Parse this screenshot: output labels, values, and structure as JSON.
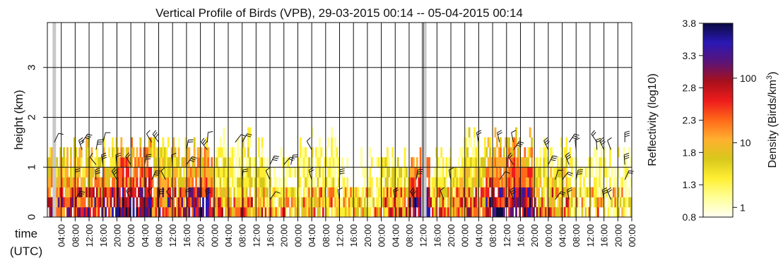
{
  "chart_data": {
    "type": "heatmap",
    "title": "Vertical Profile of Birds (VPB), 29-03-2015 00:14  --  05-04-2015 00:14",
    "xlabel": "time\n(UTC)",
    "xlabel_lines": [
      "time",
      "(UTC)"
    ],
    "ylabel": "height (km)",
    "ylim": [
      0,
      3.9
    ],
    "yticks": [
      "0",
      "1",
      "2",
      "3"
    ],
    "xlim_hours": [
      0,
      168
    ],
    "xtick_hours": [
      4,
      8,
      12,
      16,
      20,
      24,
      28,
      32,
      36,
      40,
      44,
      48,
      52,
      56,
      60,
      64,
      68,
      72,
      76,
      80,
      84,
      88,
      92,
      96,
      100,
      104,
      108,
      112,
      116,
      120,
      124,
      128,
      132,
      136,
      140,
      144,
      148,
      152,
      156,
      160,
      164,
      168
    ],
    "xtick_labels": [
      "04:00",
      "08:00",
      "12:00",
      "16:00",
      "20:00",
      "00:00",
      "04:00",
      "08:00",
      "12:00",
      "16:00",
      "20:00",
      "00:00",
      "04:00",
      "08:00",
      "12:00",
      "16:00",
      "20:00",
      "00:00",
      "04:00",
      "08:00",
      "12:00",
      "16:00",
      "20:00",
      "00:00",
      "04:00",
      "08:00",
      "12:00",
      "16:00",
      "20:00",
      "00:00",
      "04:00",
      "08:00",
      "12:00",
      "16:00",
      "20:00",
      "00:00",
      "04:00",
      "08:00",
      "12:00",
      "16:00",
      "20:00",
      "00:00"
    ],
    "missing_data_hours": [
      [
        1.5,
        2.5
      ],
      [
        107.5,
        109.0
      ]
    ],
    "grid": true,
    "colorbar": {
      "left_label": "Reflectivity (log10)",
      "right_label": "Density (Birds/km",
      "right_label_sup": "3",
      "right_label_end": ")",
      "left_ticks": [
        "0.8",
        "1.3",
        "1.8",
        "2.3",
        "2.8",
        "3.3",
        "3.8"
      ],
      "right_ticks": [
        {
          "label": "1",
          "reflectivity": 0.95
        },
        {
          "label": "10",
          "reflectivity": 1.95
        },
        {
          "label": "100",
          "reflectivity": 2.95
        }
      ],
      "range": [
        0.8,
        3.8
      ],
      "colors": [
        "#fffff2",
        "#ffff99",
        "#ffee33",
        "#d8c81c",
        "#ffb030",
        "#ff6a1a",
        "#ee1c1c",
        "#a8101c",
        "#5a1478",
        "#2a18b4",
        "#0a0a40"
      ]
    },
    "intensity_profile": [
      {
        "from": 0,
        "to": 20,
        "level": 2.3,
        "top": 1.2
      },
      {
        "from": 20,
        "to": 30,
        "level": 2.9,
        "top": 1.3
      },
      {
        "from": 30,
        "to": 40,
        "level": 2.2,
        "top": 1.4
      },
      {
        "from": 40,
        "to": 48,
        "level": 2.6,
        "top": 1.2
      },
      {
        "from": 48,
        "to": 62,
        "level": 1.6,
        "top": 1.4
      },
      {
        "from": 62,
        "to": 72,
        "level": 1.35,
        "top": 1.0
      },
      {
        "from": 72,
        "to": 84,
        "level": 1.5,
        "top": 1.4
      },
      {
        "from": 84,
        "to": 96,
        "level": 1.3,
        "top": 1.0
      },
      {
        "from": 96,
        "to": 104,
        "level": 1.8,
        "top": 1.1
      },
      {
        "from": 104,
        "to": 110,
        "level": 2.9,
        "top": 1.0
      },
      {
        "from": 110,
        "to": 118,
        "level": 1.6,
        "top": 1.0
      },
      {
        "from": 118,
        "to": 126,
        "level": 1.9,
        "top": 1.4
      },
      {
        "from": 126,
        "to": 140,
        "level": 2.7,
        "top": 1.4
      },
      {
        "from": 140,
        "to": 150,
        "level": 1.8,
        "top": 1.2
      },
      {
        "from": 150,
        "to": 168,
        "level": 1.25,
        "top": 1.2
      }
    ]
  }
}
